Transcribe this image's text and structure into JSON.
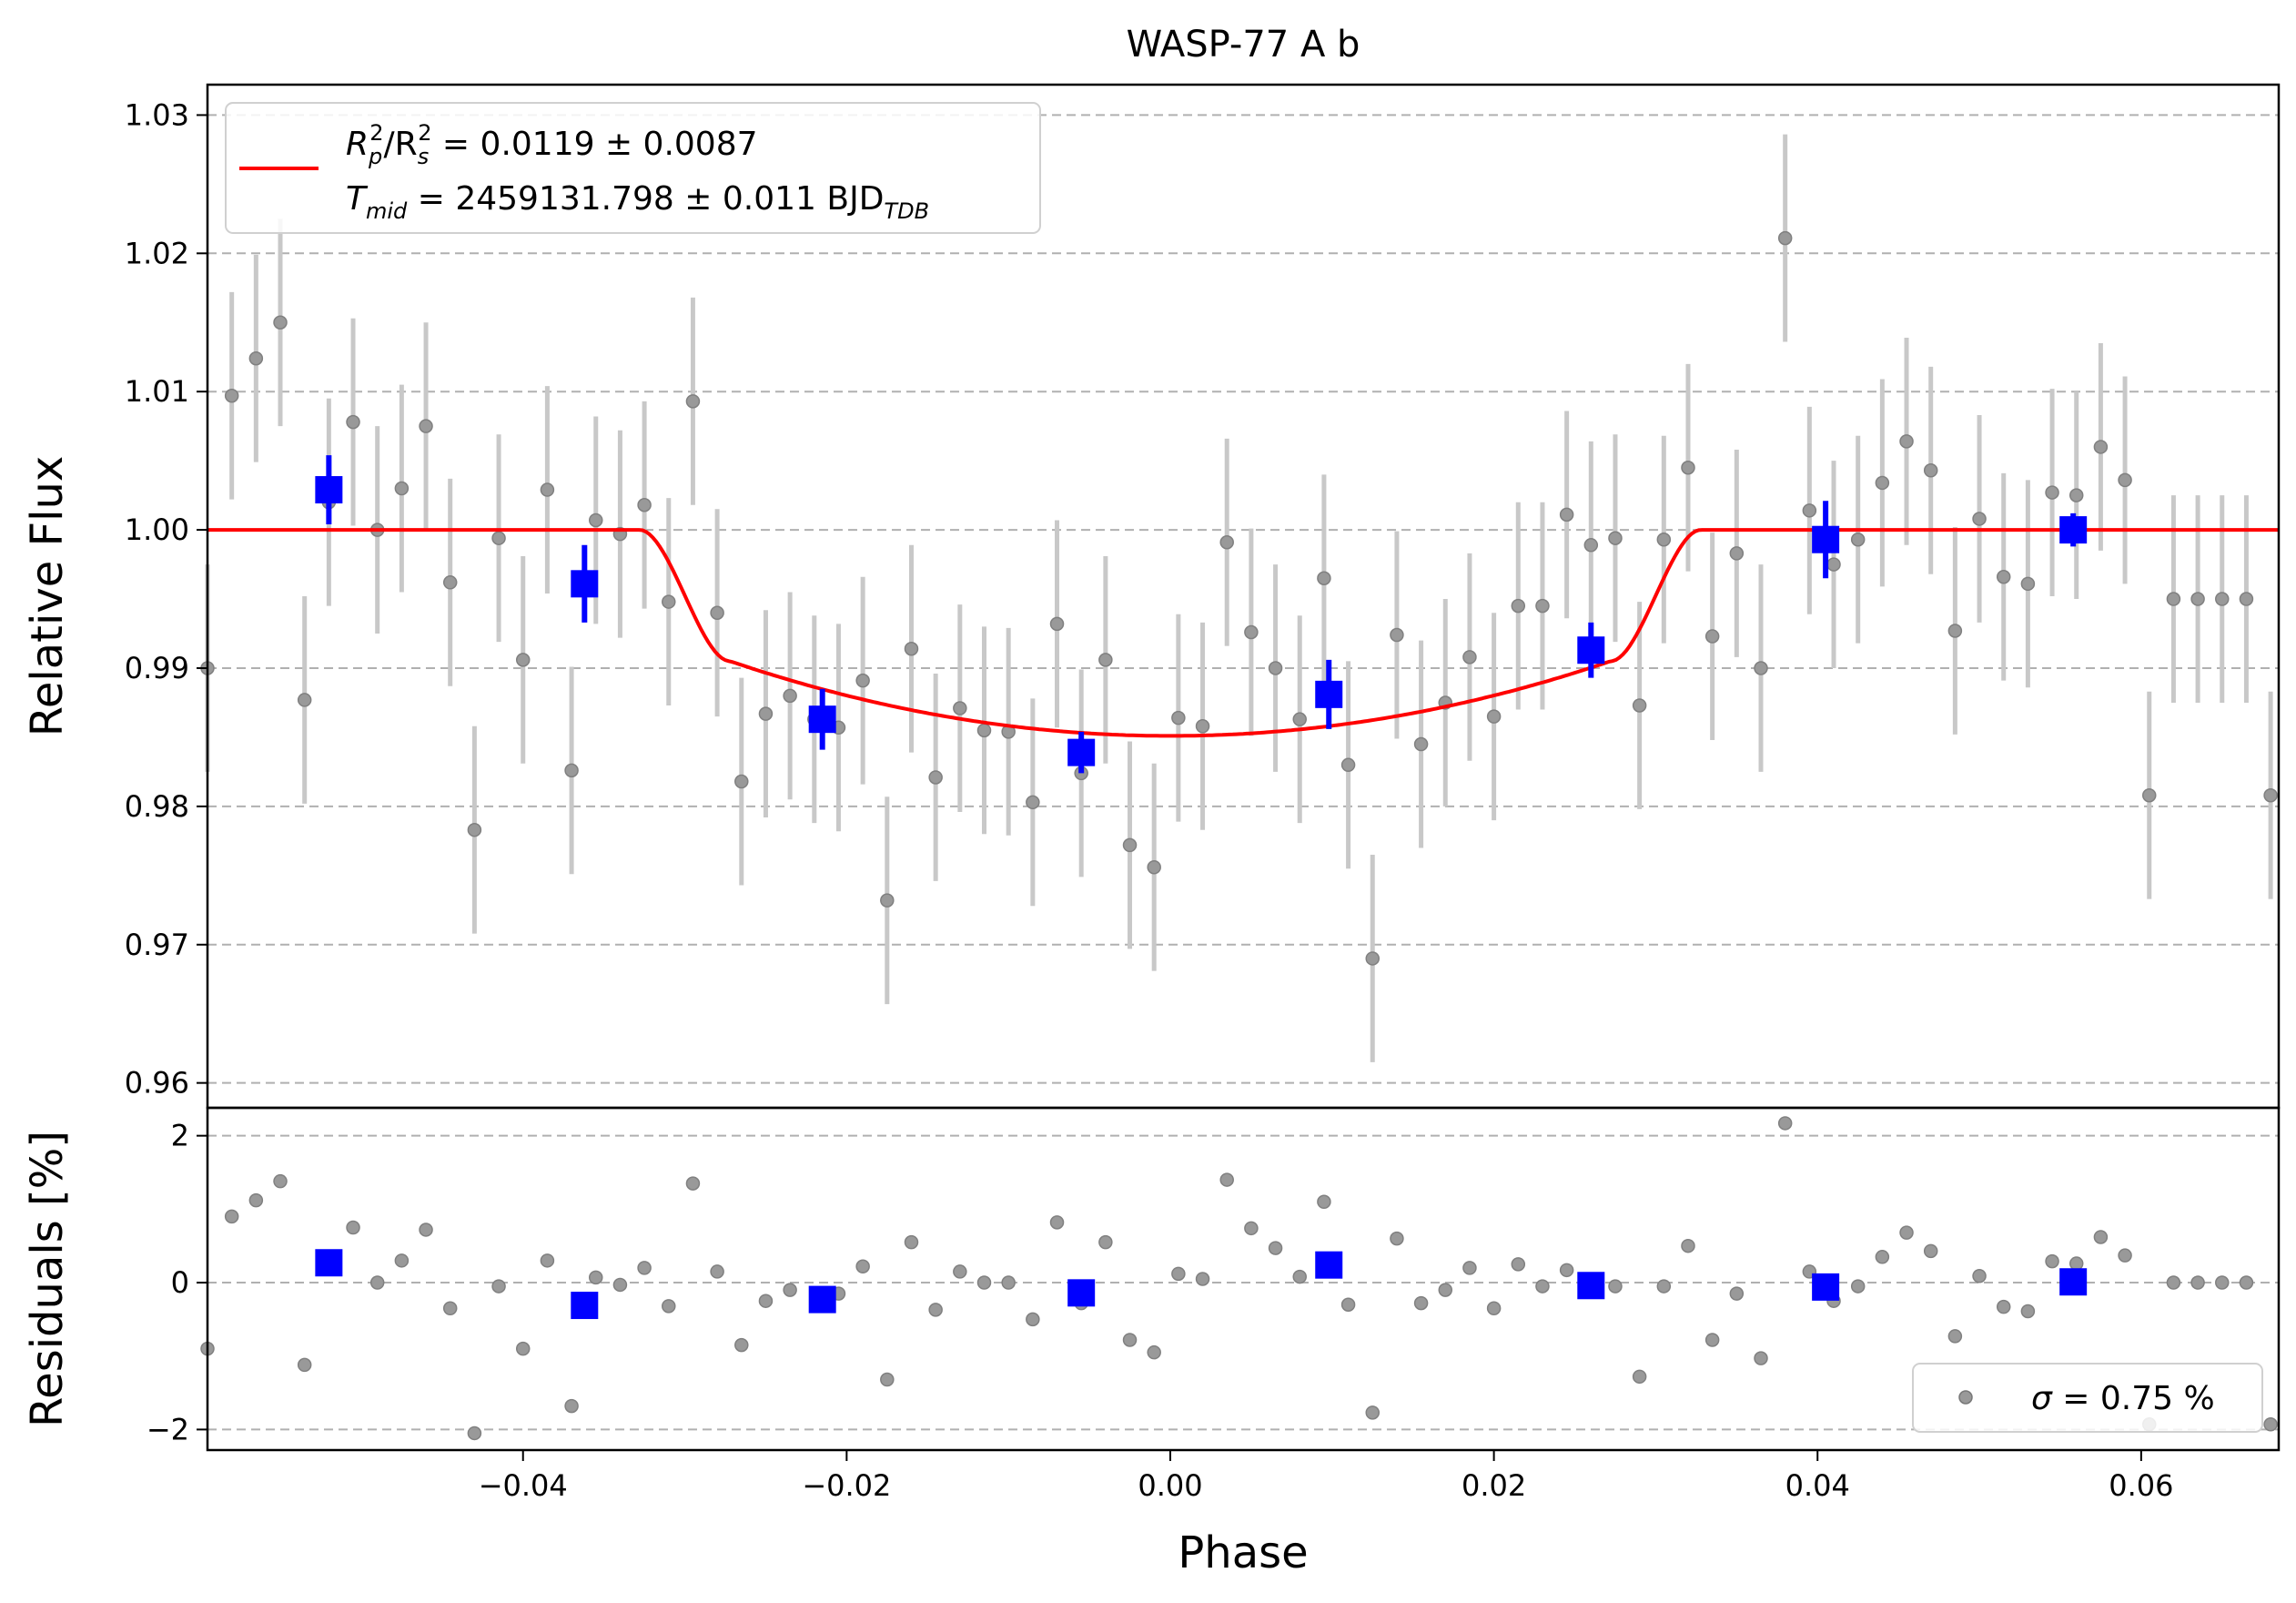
{
  "chart_data": [
    {
      "panel": "top",
      "type": "scatter",
      "title": "WASP-77 A b",
      "xlabel": "",
      "ylabel": "Relative Flux",
      "xlim": [
        -0.0595,
        0.0685
      ],
      "ylim": [
        0.9582,
        1.0322
      ],
      "yticks": [
        0.96,
        0.97,
        0.98,
        0.99,
        1.0,
        1.01,
        1.02,
        1.03
      ],
      "ytick_labels": [
        "0.96",
        "0.97",
        "0.98",
        "0.99",
        "1.00",
        "1.01",
        "1.02",
        "1.03"
      ],
      "grid": "horizontal dashed",
      "legend": {
        "position": "top-left",
        "line1": {
          "pre": "R",
          "sub1": "p",
          "sup1": "2",
          "mid": "/R",
          "sub2": "s",
          "sup2": "2",
          "post": " = 0.0119 ± 0.0087"
        },
        "line2": {
          "pre": "T",
          "sub1": "mid",
          "mid": " = 2459131.798 ± 0.011 BJD",
          "sub2": "TDB"
        }
      },
      "colors": {
        "data": "#808080",
        "errorbar": "#c8c8c8",
        "binned": "#0000ff",
        "model": "#ff0000",
        "grid": "#b0b0b0"
      },
      "series": [
        {
          "kind": "data",
          "x": [
            -0.0595,
            -0.058,
            -0.0565,
            -0.055,
            -0.0535,
            -0.052,
            -0.0505,
            -0.049,
            -0.0475,
            -0.046,
            -0.0445,
            -0.043,
            -0.0415,
            -0.04,
            -0.0385,
            -0.037,
            -0.0355,
            -0.034,
            -0.0325,
            -0.031,
            -0.0295,
            -0.028,
            -0.0265,
            -0.025,
            -0.0235,
            -0.022,
            -0.0205,
            -0.019,
            -0.0175,
            -0.016,
            -0.0145,
            -0.013,
            -0.0115,
            -0.01,
            -0.0085,
            -0.007,
            -0.0055,
            -0.004,
            -0.0025,
            -0.001,
            0.0005,
            0.002,
            0.0035,
            0.005,
            0.0065,
            0.008,
            0.0095,
            0.011,
            0.0125,
            0.014,
            0.0155,
            0.017,
            0.0185,
            0.02,
            0.0215,
            0.023,
            0.0245,
            0.026,
            0.0275,
            0.029,
            0.0305,
            0.032,
            0.0335,
            0.035,
            0.0365,
            0.038,
            0.0395,
            0.041,
            0.0425,
            0.044,
            0.0455,
            0.047,
            0.0485,
            0.05,
            0.0515,
            0.053,
            0.0545,
            0.056,
            0.0575,
            0.059,
            0.0605,
            0.062,
            0.0635,
            0.065,
            0.0665,
            0.068
          ],
          "y": [
            0.99,
            1.0097,
            1.0124,
            1.015,
            0.9877,
            1.002,
            1.0078,
            1.0,
            1.003,
            1.0075,
            0.9962,
            0.9783,
            0.9994,
            0.9906,
            1.0029,
            0.9826,
            1.0007,
            0.9997,
            1.0018,
            0.9948,
            1.0093,
            0.994,
            0.9818,
            0.9867,
            0.988,
            0.9863,
            0.9857,
            0.9891,
            0.9732,
            0.9914,
            0.9821,
            0.9871,
            0.9855,
            0.9854,
            0.9803,
            0.9932,
            0.9824,
            0.9906,
            0.9772,
            0.9756,
            0.9864,
            0.9858,
            0.9991,
            0.9926,
            0.99,
            0.9863,
            0.9965,
            0.983,
            0.969,
            0.9924,
            0.9845,
            0.9875,
            0.9908,
            0.9865,
            0.9945,
            0.9945,
            1.0011,
            0.9989,
            0.9994,
            0.9873,
            0.9993,
            1.0045,
            0.9923,
            0.9983,
            0.99,
            1.0211,
            1.0014,
            0.9975,
            0.9993,
            1.0034,
            1.0064,
            1.0043,
            0.9927,
            1.0008,
            0.9966,
            0.9961,
            1.0027,
            1.0025,
            1.006,
            1.0036,
            0.9808,
            0.995,
            0.995,
            0.995,
            0.995,
            0.9808
          ],
          "yerr": 0.0075
        },
        {
          "kind": "binned",
          "x": [
            -0.052,
            -0.0362,
            -0.0215,
            -0.0055,
            0.0098,
            0.026,
            0.0405,
            0.0558
          ],
          "y": [
            1.0029,
            0.9961,
            0.9863,
            0.9839,
            0.9881,
            0.9913,
            0.9993,
            1.0
          ],
          "yerr": [
            0.0025,
            0.0028,
            0.0022,
            0.0015,
            0.0025,
            0.002,
            0.0028,
            0.0012
          ]
        },
        {
          "kind": "model",
          "ingress_start": -0.0328,
          "ingress_end": -0.0272,
          "egress_start": 0.0272,
          "egress_end": 0.0328,
          "depth": 0.0149,
          "contact_depth": 0.0095
        }
      ]
    },
    {
      "panel": "bottom",
      "type": "scatter",
      "xlabel": "Phase",
      "ylabel": "Residuals [%]",
      "xlim": [
        -0.0595,
        0.0685
      ],
      "ylim": [
        -2.28,
        2.38
      ],
      "yticks": [
        -2,
        0,
        2
      ],
      "ytick_labels": [
        "−2",
        "0",
        "2"
      ],
      "xticks": [
        -0.04,
        -0.02,
        0.0,
        0.02,
        0.04,
        0.06
      ],
      "xtick_labels": [
        "−0.04",
        "−0.02",
        "0.00",
        "0.02",
        "0.04",
        "0.06"
      ],
      "grid": "horizontal dashed",
      "legend": {
        "position": "bottom-right",
        "sigma_symbol": "σ",
        "text": " = 0.75 %"
      },
      "series": [
        {
          "kind": "residuals",
          "x": [
            -0.0595,
            -0.058,
            -0.0565,
            -0.055,
            -0.0535,
            -0.0505,
            -0.049,
            -0.0475,
            -0.046,
            -0.0445,
            -0.043,
            -0.0415,
            -0.04,
            -0.0385,
            -0.037,
            -0.0355,
            -0.034,
            -0.0325,
            -0.031,
            -0.0295,
            -0.028,
            -0.0265,
            -0.025,
            -0.0235,
            -0.0205,
            -0.019,
            -0.0175,
            -0.016,
            -0.0145,
            -0.013,
            -0.0115,
            -0.01,
            -0.0085,
            -0.007,
            -0.0055,
            -0.004,
            -0.0025,
            -0.001,
            0.0005,
            0.002,
            0.0035,
            0.005,
            0.0065,
            0.008,
            0.0095,
            0.011,
            0.0125,
            0.014,
            0.0155,
            0.017,
            0.0185,
            0.02,
            0.0215,
            0.023,
            0.0245,
            0.026,
            0.0275,
            0.029,
            0.0305,
            0.032,
            0.0335,
            0.035,
            0.0365,
            0.038,
            0.0395,
            0.041,
            0.0425,
            0.044,
            0.0455,
            0.047,
            0.0485,
            0.05,
            0.0515,
            0.053,
            0.0545,
            0.056,
            0.0575,
            0.059,
            0.0605,
            0.062,
            0.0635,
            0.065,
            0.0665,
            0.068
          ],
          "y": [
            -0.9,
            0.9,
            1.12,
            1.38,
            -1.12,
            0.75,
            0.0,
            0.3,
            0.72,
            -0.35,
            -2.05,
            -0.05,
            -0.9,
            0.3,
            -1.68,
            0.07,
            -0.03,
            0.2,
            -0.32,
            1.35,
            0.15,
            -0.85,
            -0.25,
            -0.1,
            -0.15,
            0.22,
            -1.32,
            0.55,
            -0.37,
            0.15,
            0.0,
            0.0,
            -0.5,
            0.82,
            -0.28,
            0.55,
            -0.78,
            -0.95,
            0.12,
            0.05,
            1.4,
            0.74,
            0.47,
            0.08,
            1.1,
            -0.3,
            -1.77,
            0.6,
            -0.28,
            -0.1,
            0.2,
            -0.35,
            0.25,
            -0.05,
            0.17,
            -0.1,
            -0.05,
            -1.28,
            -0.05,
            0.5,
            -0.78,
            -0.15,
            -1.03,
            2.17,
            0.15,
            -0.25,
            -0.05,
            0.35,
            0.68,
            0.43,
            -0.73,
            0.09,
            -0.33,
            -0.39,
            0.29,
            0.26,
            0.62,
            0.37,
            -1.93,
            0.0,
            0.0,
            0.0,
            0.0,
            -1.93
          ]
        },
        {
          "kind": "binned",
          "x": [
            -0.052,
            -0.0362,
            -0.0215,
            -0.0055,
            0.0098,
            0.026,
            0.0405,
            0.0558
          ],
          "y": [
            0.27,
            -0.31,
            -0.23,
            -0.14,
            0.24,
            -0.04,
            -0.06,
            0.01
          ]
        }
      ]
    }
  ]
}
